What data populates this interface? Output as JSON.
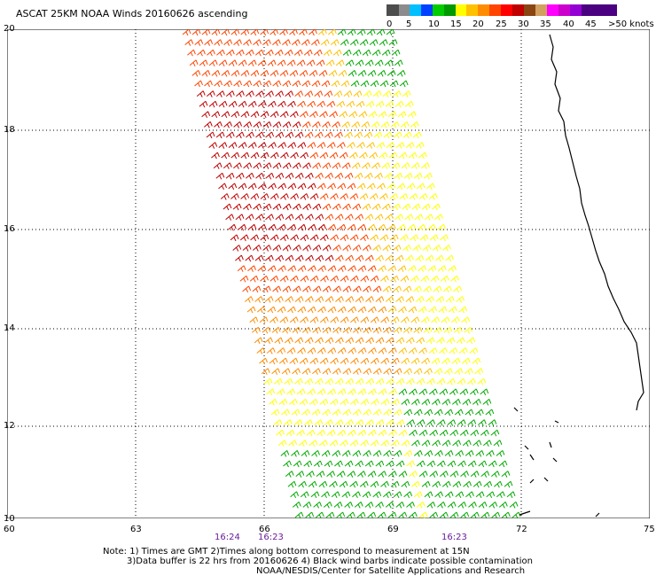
{
  "title": "ASCAT 25KM NOAA Winds 20160626 ascending",
  "legend": {
    "colors": [
      "#4d4d4d",
      "#8c8c8c",
      "#00bfff",
      "#0040ff",
      "#00cc00",
      "#009900",
      "#ffff00",
      "#ffc000",
      "#ff8c00",
      "#ff4500",
      "#ff0000",
      "#c00000",
      "#8b4513",
      "#d2a060",
      "#ff00ff",
      "#cc00cc",
      "#9400d3",
      "#4b0082"
    ],
    "ticks": [
      "0",
      "5",
      "10",
      "15",
      "20",
      "25",
      "30",
      "35",
      "40",
      "45",
      ">50 knots"
    ]
  },
  "axes": {
    "lat_labels": [
      "20",
      "18",
      "16",
      "14",
      "12",
      "10"
    ],
    "lon_labels": [
      "60",
      "63",
      "66",
      "69",
      "72",
      "75"
    ],
    "lat_range": [
      10,
      20
    ],
    "lon_range": [
      60,
      75
    ]
  },
  "times": [
    "16:24",
    "16:23",
    "16:23"
  ],
  "notes": [
    "Note: 1) Times are GMT 2)Times along bottom correspond to measurement at 15N",
    "3)Data buffer is 22 hrs from 20160626 4) Black wind barbs indicate possible contamination",
    "NOAA/NESDIS/Center for Satellite Applications and Research"
  ],
  "map": {
    "swath": "ascending pass",
    "wind_colors": {
      "calm": "#00aa00",
      "light": "#ffff00",
      "moderate": "#ffc000",
      "fresh": "#ff8c00",
      "strong": "#ff4500",
      "gale": "#c00000"
    },
    "coast_color": "#000000"
  }
}
